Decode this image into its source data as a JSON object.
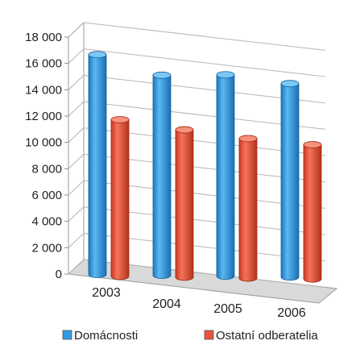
{
  "chart_data": {
    "type": "bar",
    "style": "3d-cylinder",
    "title": "",
    "xlabel": "",
    "ylabel": "",
    "categories": [
      "2003",
      "2004",
      "2005",
      "2006"
    ],
    "series": [
      {
        "name": "Domácnosti",
        "values": [
          16700,
          15200,
          15300,
          14700
        ],
        "color": "#2e9be3"
      },
      {
        "name": "Ostatní odberatelia",
        "values": [
          11900,
          11200,
          10600,
          10200
        ],
        "color": "#e8543a"
      }
    ],
    "ylim": [
      0,
      18000
    ],
    "yticks": [
      "0",
      "2 000",
      "4 000",
      "6 000",
      "8 000",
      "10 000",
      "12 000",
      "14 000",
      "16 000",
      "18 000"
    ],
    "grid": true,
    "legend_position": "bottom"
  }
}
